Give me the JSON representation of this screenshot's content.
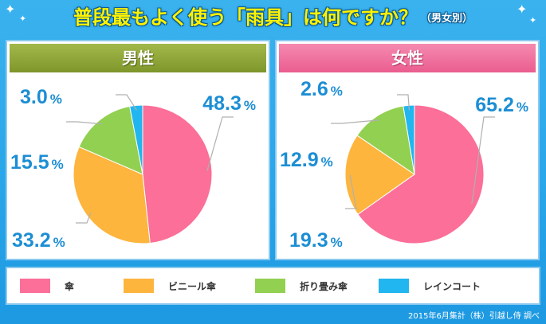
{
  "title": "普段最もよく使う「雨具」は何ですか？",
  "subtitle": "（男女別）",
  "footer": "2015年6月集計（株）引越し侍 調べ",
  "colors": {
    "umbrella": "#fb6f98",
    "vinyl": "#fdb53e",
    "folding": "#92d051",
    "raincoat": "#21b6ef"
  },
  "legend": [
    {
      "label": "傘",
      "color": "#fb6f98"
    },
    {
      "label": "ビニール傘",
      "color": "#fdb53e"
    },
    {
      "label": "折り畳み傘",
      "color": "#92d051"
    },
    {
      "label": "レインコート",
      "color": "#21b6ef"
    }
  ],
  "chart_data": [
    {
      "type": "pie",
      "title": "男性",
      "categories": [
        "傘",
        "ビニール傘",
        "折り畳み傘",
        "レインコート"
      ],
      "values": [
        48.3,
        33.2,
        15.5,
        3.0
      ],
      "labels": [
        "48.3",
        "33.2",
        "15.5",
        "3.0"
      ],
      "unit": "%"
    },
    {
      "type": "pie",
      "title": "女性",
      "categories": [
        "傘",
        "ビニール傘",
        "折り畳み傘",
        "レインコート"
      ],
      "values": [
        65.2,
        19.3,
        12.9,
        2.6
      ],
      "labels": [
        "65.2",
        "19.3",
        "12.9",
        "2.6"
      ],
      "unit": "%"
    }
  ]
}
